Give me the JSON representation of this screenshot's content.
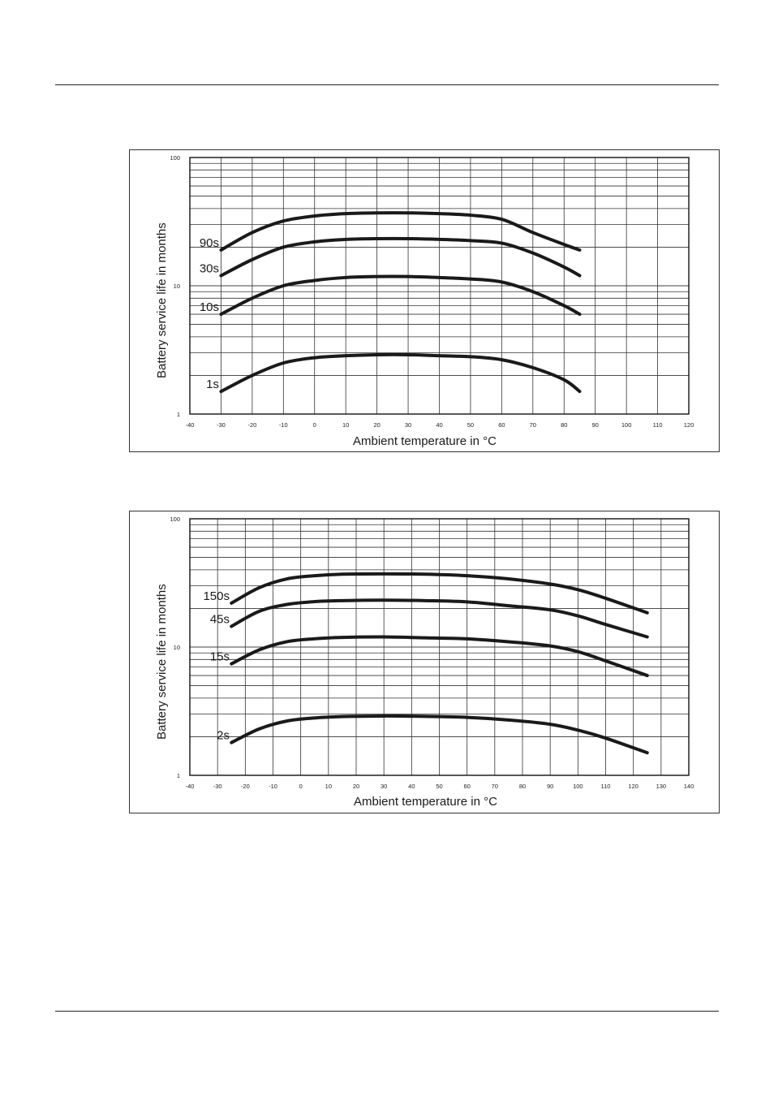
{
  "chart_data": [
    {
      "type": "line",
      "xlabel": "Ambient temperature in °C",
      "ylabel": "Battery service life in months",
      "xlim": [
        -40,
        120
      ],
      "ylim": [
        1,
        100
      ],
      "yscale": "log",
      "xticks": [
        "-40",
        "-30",
        "-20",
        "-10",
        "0",
        "10",
        "20",
        "30",
        "40",
        "50",
        "60",
        "70",
        "80",
        "90",
        "100",
        "110",
        "120"
      ],
      "yticks": [
        "1",
        "10",
        "100"
      ],
      "grid": true,
      "series": [
        {
          "name": "90s",
          "x": [
            -30,
            -20,
            -10,
            0,
            10,
            20,
            30,
            40,
            50,
            60,
            70,
            80,
            85
          ],
          "y": [
            19,
            26,
            32,
            35,
            36.5,
            37,
            37,
            36.5,
            35.5,
            33,
            26,
            21,
            19
          ]
        },
        {
          "name": "30s",
          "x": [
            -30,
            -20,
            -10,
            0,
            10,
            20,
            30,
            40,
            50,
            60,
            70,
            80,
            85
          ],
          "y": [
            12,
            16,
            20,
            22,
            23,
            23.3,
            23.3,
            23,
            22.5,
            21.5,
            18,
            14,
            12
          ]
        },
        {
          "name": "10s",
          "x": [
            -30,
            -20,
            -10,
            0,
            10,
            20,
            30,
            40,
            50,
            60,
            70,
            80,
            85
          ],
          "y": [
            6,
            8,
            10,
            11,
            11.6,
            11.8,
            11.8,
            11.6,
            11.3,
            10.7,
            9,
            7,
            6
          ]
        },
        {
          "name": "1s",
          "x": [
            -30,
            -20,
            -10,
            0,
            10,
            20,
            30,
            40,
            50,
            60,
            70,
            80,
            85
          ],
          "y": [
            1.5,
            2,
            2.5,
            2.75,
            2.85,
            2.9,
            2.9,
            2.85,
            2.8,
            2.65,
            2.3,
            1.85,
            1.5
          ]
        }
      ]
    },
    {
      "type": "line",
      "xlabel": "Ambient temperature in °C",
      "ylabel": "Battery service life in months",
      "xlim": [
        -40,
        140
      ],
      "ylim": [
        1,
        100
      ],
      "yscale": "log",
      "xticks": [
        "-40",
        "-30",
        "-20",
        "-10",
        "0",
        "10",
        "20",
        "30",
        "40",
        "50",
        "60",
        "70",
        "80",
        "90",
        "100",
        "110",
        "120",
        "130",
        "140"
      ],
      "yticks": [
        "1",
        "10",
        "100"
      ],
      "grid": true,
      "series": [
        {
          "name": "150s",
          "x": [
            -25,
            -15,
            -5,
            5,
            15,
            30,
            45,
            60,
            75,
            90,
            100,
            110,
            125
          ],
          "y": [
            22,
            29,
            34,
            36,
            37,
            37.2,
            37,
            36,
            34,
            31,
            28,
            24,
            18.5
          ]
        },
        {
          "name": "45s",
          "x": [
            -25,
            -15,
            -5,
            5,
            15,
            30,
            45,
            60,
            75,
            90,
            100,
            110,
            125
          ],
          "y": [
            14.5,
            19,
            21.5,
            22.6,
            23,
            23.2,
            23,
            22.5,
            21,
            19.5,
            17.5,
            15,
            12
          ]
        },
        {
          "name": "15s",
          "x": [
            -25,
            -15,
            -5,
            5,
            15,
            30,
            45,
            60,
            75,
            90,
            100,
            110,
            125
          ],
          "y": [
            7.4,
            9.5,
            11,
            11.6,
            11.9,
            12,
            11.8,
            11.6,
            11,
            10.2,
            9.2,
            7.8,
            6
          ]
        },
        {
          "name": "2s",
          "x": [
            -25,
            -15,
            -5,
            5,
            15,
            30,
            45,
            60,
            75,
            90,
            100,
            110,
            125
          ],
          "y": [
            1.8,
            2.3,
            2.65,
            2.8,
            2.87,
            2.9,
            2.88,
            2.83,
            2.7,
            2.5,
            2.25,
            1.95,
            1.5
          ]
        }
      ]
    }
  ]
}
